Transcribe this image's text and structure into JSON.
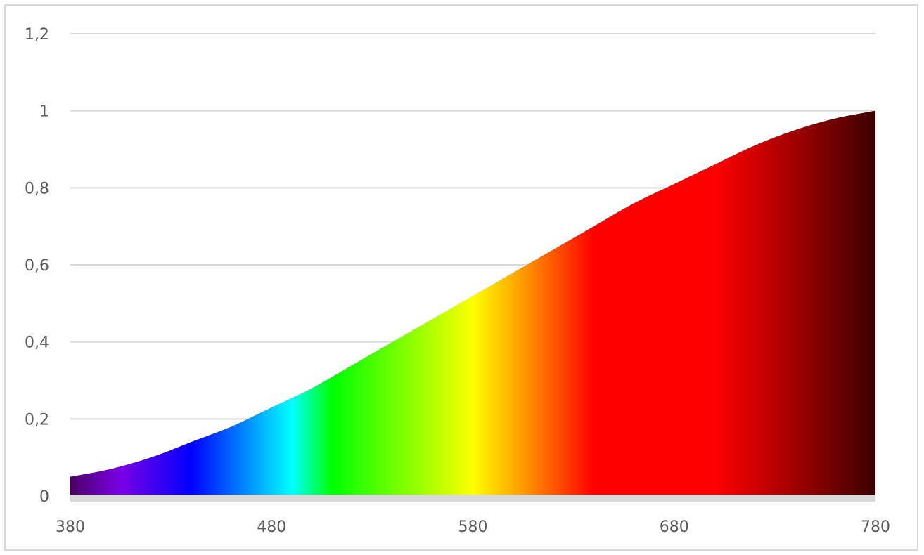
{
  "chart_data": {
    "type": "area",
    "title": "",
    "xlabel": "",
    "ylabel": "",
    "xlim": [
      380,
      780
    ],
    "ylim": [
      0,
      1.2
    ],
    "grid": true,
    "legend": "none",
    "x_ticks": [
      {
        "value": 380,
        "label": "380"
      },
      {
        "value": 480,
        "label": "480"
      },
      {
        "value": 580,
        "label": "580"
      },
      {
        "value": 680,
        "label": "680"
      },
      {
        "value": 780,
        "label": "780"
      }
    ],
    "y_ticks": [
      {
        "value": 0,
        "label": "0"
      },
      {
        "value": 0.2,
        "label": "0,2"
      },
      {
        "value": 0.4,
        "label": "0,4"
      },
      {
        "value": 0.6,
        "label": "0,6"
      },
      {
        "value": 0.8,
        "label": "0,8"
      },
      {
        "value": 1.0,
        "label": "1"
      },
      {
        "value": 1.2,
        "label": "1,2"
      }
    ],
    "series": [
      {
        "x": [
          380,
          400,
          420,
          440,
          460,
          480,
          500,
          520,
          540,
          560,
          580,
          600,
          620,
          640,
          660,
          680,
          700,
          720,
          740,
          760,
          780
        ],
        "values": [
          0.05,
          0.07,
          0.1,
          0.14,
          0.18,
          0.23,
          0.28,
          0.34,
          0.4,
          0.46,
          0.52,
          0.58,
          0.64,
          0.7,
          0.76,
          0.81,
          0.86,
          0.91,
          0.95,
          0.98,
          1.0
        ]
      }
    ],
    "fill_gradient": [
      {
        "x": 380,
        "color": "#4b0066"
      },
      {
        "x": 405,
        "color": "#7a00e6"
      },
      {
        "x": 440,
        "color": "#0000ff"
      },
      {
        "x": 490,
        "color": "#00ffff"
      },
      {
        "x": 510,
        "color": "#00ff00"
      },
      {
        "x": 560,
        "color": "#b3ff00"
      },
      {
        "x": 580,
        "color": "#ffff00"
      },
      {
        "x": 605,
        "color": "#ff9900"
      },
      {
        "x": 640,
        "color": "#ff0000"
      },
      {
        "x": 700,
        "color": "#ff0000"
      },
      {
        "x": 740,
        "color": "#a00000"
      },
      {
        "x": 780,
        "color": "#3c0000"
      }
    ],
    "colors": {
      "grid": "#d9d9d9",
      "axis_band": "#d9d9d9",
      "tick_text": "#595959",
      "frame": "#d9d9d9"
    }
  }
}
